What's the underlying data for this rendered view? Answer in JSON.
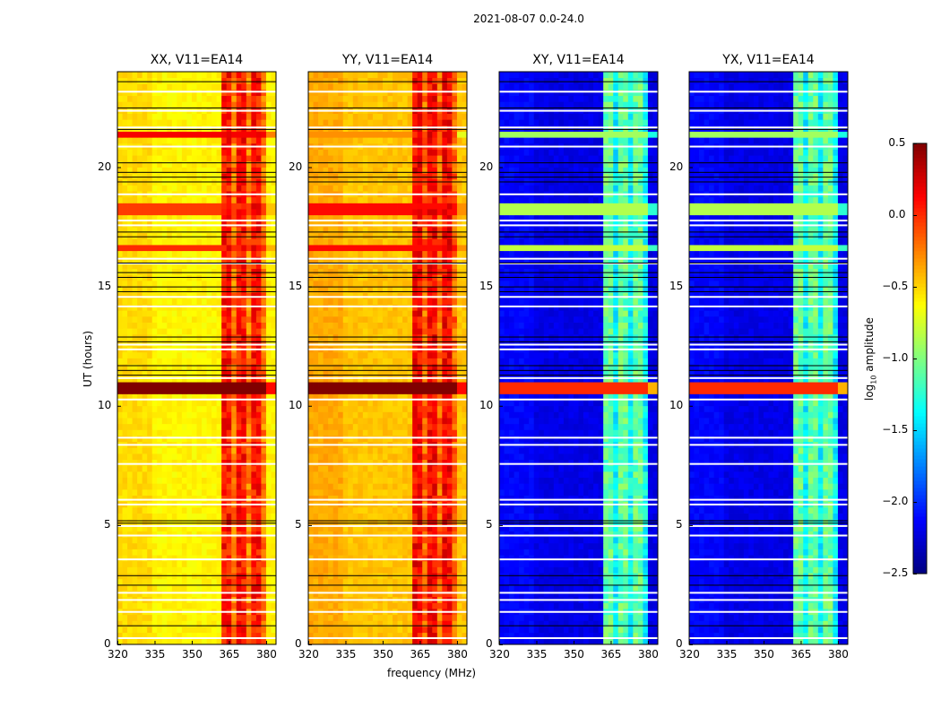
{
  "suptitle": "2021-08-07 0.0-24.0",
  "ylabel": "UT (hours)",
  "xlabel": "frequency (MHz)",
  "colorbar": {
    "label": "log10 amplitude",
    "label_main": "log",
    "label_sub": "10",
    "label_tail": " amplitude",
    "range": [
      -2.5,
      0.5
    ],
    "ticks": [
      "0.5",
      "0.0",
      "−0.5",
      "−1.0",
      "−1.5",
      "−2.0",
      "−2.5"
    ],
    "tick_values": [
      0.5,
      0.0,
      -0.5,
      -1.0,
      -1.5,
      -2.0,
      -2.5
    ],
    "colormap": "jet"
  },
  "chart_data": [
    {
      "type": "heatmap",
      "title": "XX, V11=EA14",
      "xlim": [
        320,
        384
      ],
      "ylim": [
        0,
        24
      ],
      "xticks": [
        "320",
        "335",
        "350",
        "365",
        "380"
      ],
      "xtick_values": [
        320,
        335,
        350,
        365,
        380
      ],
      "yticks": [
        "0",
        "5",
        "10",
        "15",
        "20"
      ],
      "ytick_values": [
        0,
        5,
        10,
        15,
        20
      ],
      "base": -0.6,
      "rfi_band": [
        362,
        380
      ],
      "rfi_level": 0.0,
      "hot_rows": [
        [
          21.2,
          21.5,
          0.15
        ],
        [
          18.1,
          18.5,
          -0.05
        ],
        [
          16.4,
          16.7,
          0.0
        ],
        [
          10.6,
          11.0,
          0.5
        ]
      ]
    },
    {
      "type": "heatmap",
      "title": "YY, V11=EA14",
      "xlim": [
        320,
        384
      ],
      "ylim": [
        0,
        24
      ],
      "xticks": [
        "320",
        "335",
        "350",
        "365",
        "380"
      ],
      "xtick_values": [
        320,
        335,
        350,
        365,
        380
      ],
      "yticks": [
        "0",
        "5",
        "10",
        "15",
        "20"
      ],
      "ytick_values": [
        0,
        5,
        10,
        15,
        20
      ],
      "base": -0.45,
      "rfi_band": [
        362,
        380
      ],
      "rfi_level": 0.05,
      "hot_rows": [
        [
          21.2,
          21.5,
          -0.3
        ],
        [
          18.1,
          18.5,
          0.1
        ],
        [
          16.4,
          16.7,
          0.1
        ],
        [
          10.6,
          11.0,
          0.5
        ]
      ]
    },
    {
      "type": "heatmap",
      "title": "XY, V11=EA14",
      "xlim": [
        320,
        384
      ],
      "ylim": [
        0,
        24
      ],
      "xticks": [
        "320",
        "335",
        "350",
        "365",
        "380"
      ],
      "xtick_values": [
        320,
        335,
        350,
        365,
        380
      ],
      "yticks": [
        "0",
        "5",
        "10",
        "15",
        "20"
      ],
      "ytick_values": [
        0,
        5,
        10,
        15,
        20
      ],
      "base": -2.2,
      "rfi_band": [
        362,
        380
      ],
      "rfi_level": -1.15,
      "hot_rows": [
        [
          21.2,
          21.5,
          -0.9
        ],
        [
          18.1,
          18.5,
          -0.85
        ],
        [
          16.4,
          16.7,
          -0.8
        ],
        [
          10.6,
          11.0,
          0.0
        ]
      ]
    },
    {
      "type": "heatmap",
      "title": "YX, V11=EA14",
      "xlim": [
        320,
        384
      ],
      "ylim": [
        0,
        24
      ],
      "xticks": [
        "320",
        "335",
        "350",
        "365",
        "380"
      ],
      "xtick_values": [
        320,
        335,
        350,
        365,
        380
      ],
      "yticks": [
        "0",
        "5",
        "10",
        "15",
        "20"
      ],
      "ytick_values": [
        0,
        5,
        10,
        15,
        20
      ],
      "base": -2.2,
      "rfi_band": [
        362,
        380
      ],
      "rfi_level": -1.15,
      "hot_rows": [
        [
          21.2,
          21.5,
          -0.9
        ],
        [
          18.1,
          18.5,
          -0.85
        ],
        [
          16.4,
          16.7,
          -0.8
        ],
        [
          10.6,
          11.0,
          0.0
        ]
      ]
    }
  ],
  "flagged_white_hours": [
    23.2,
    22.4,
    21.7,
    20.9,
    18.9,
    17.8,
    17.6,
    16.2,
    16.0,
    14.6,
    14.2,
    12.6,
    12.4,
    11.2,
    10.3,
    8.7,
    8.4,
    7.6,
    6.1,
    5.9,
    5.0,
    4.6,
    3.6,
    2.2,
    1.9,
    1.4,
    0.3
  ],
  "flagged_black_hours": [
    23.6,
    22.5,
    21.6,
    20.2,
    19.8,
    19.6,
    19.4,
    17.3,
    17.1,
    16.0,
    15.6,
    15.4,
    15.0,
    14.8,
    12.9,
    12.7,
    11.7,
    11.5,
    11.3,
    5.2,
    5.1,
    2.9,
    2.5,
    0.8
  ]
}
